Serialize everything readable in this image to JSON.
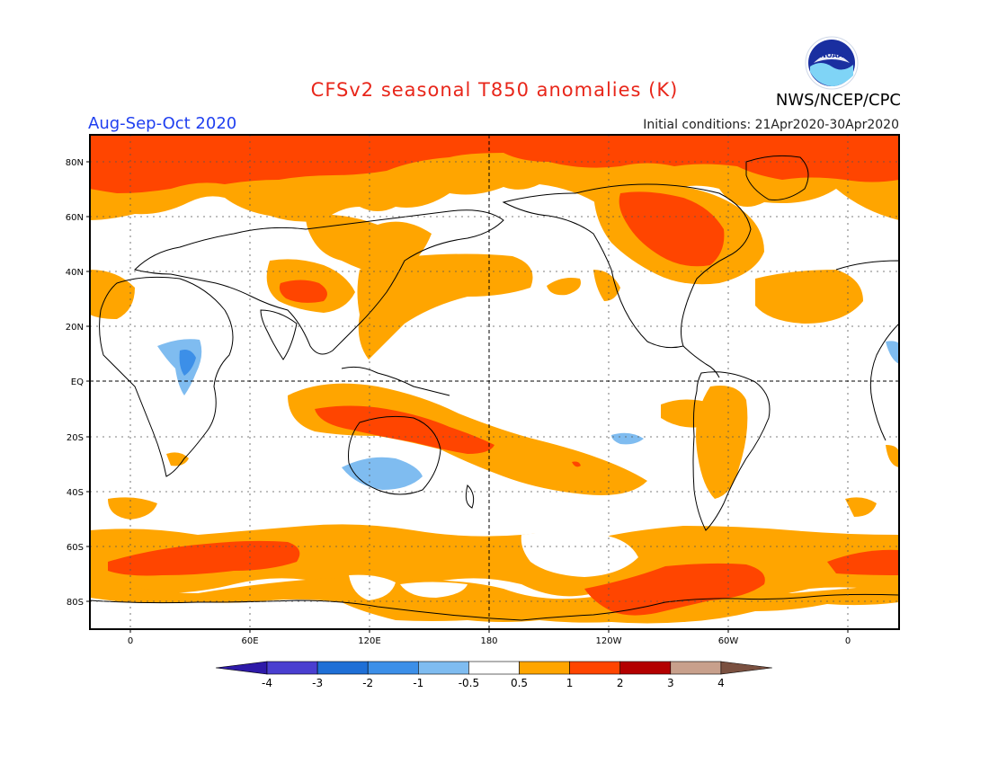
{
  "title": "CFSv2 seasonal T850 anomalies (K)",
  "agency": "NWS/NCEP/CPC",
  "logo_text": "NOAA",
  "period": "Aug-Sep-Oct 2020",
  "initial_conditions": "Initial conditions: 21Apr2020-30Apr2020",
  "lat_labels": [
    "80N",
    "60N",
    "40N",
    "20N",
    "EQ",
    "20S",
    "40S",
    "60S",
    "80S"
  ],
  "lon_labels": [
    "0",
    "60E",
    "120E",
    "180",
    "120W",
    "60W",
    "0"
  ],
  "colorbar": {
    "labels": [
      "-4",
      "-3",
      "-2",
      "-1",
      "-0.5",
      "0.5",
      "1",
      "2",
      "3",
      "4"
    ],
    "colors": [
      "#2e1aa8",
      "#4a3fd0",
      "#1f6fd6",
      "#3c8fe8",
      "#7fbcf0",
      "#ffffff",
      "#ffa500",
      "#ff4500",
      "#b30000",
      "#c8a08c",
      "#7a5040"
    ]
  },
  "anomaly_levels": {
    "strong_warm": "#ff4500",
    "warm": "#ffa500",
    "cool": "#7fbcf0",
    "cooler": "#3c8fe8"
  }
}
